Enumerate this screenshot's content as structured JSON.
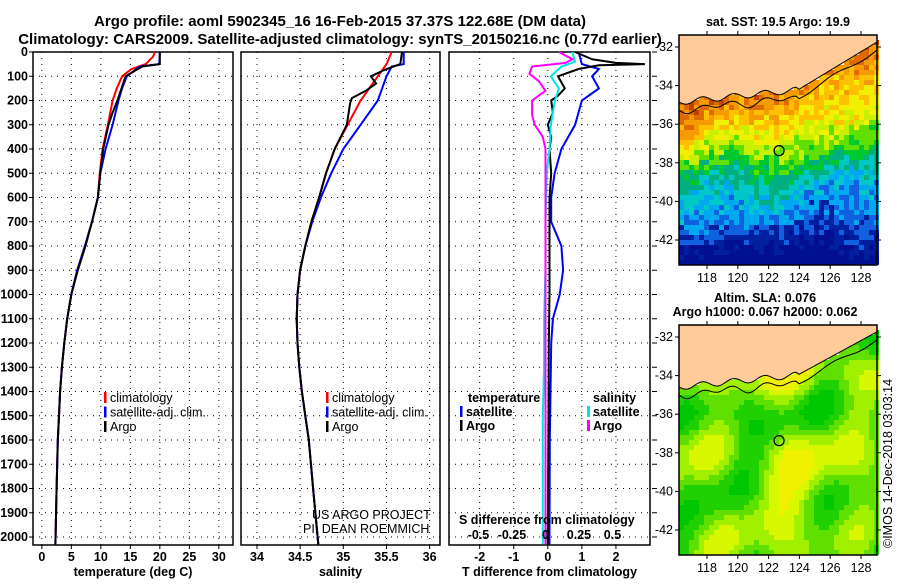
{
  "title_line1": "Argo profile: aoml 5902345_16 16-Feb-2015 37.37S 122.68E (DM data)",
  "title_line2": "Climatology: CARS2009. Satellite-adjusted climatology: synTS_20150216.nc (0.77d earlier)",
  "credit": {
    "line1": "US ARGO PROJECT",
    "line2": "PI: DEAN ROEMMICH"
  },
  "timestamp": "©IMOS 14-Dec-2018 03:03:14",
  "colors": {
    "climatology": "#ff0000",
    "satellite": "#0000ff",
    "argo": "#000000",
    "sal_satellite": "#00e5e5",
    "sal_argo": "#ff00ff",
    "land": "#ffcc99"
  },
  "chart_data": [
    {
      "type": "line",
      "name": "temperature",
      "xlabel": "temperature (deg C)",
      "ylabel": "",
      "xlim": [
        -1.5,
        32.4
      ],
      "ylim": [
        2030,
        0
      ],
      "xticks": [
        "0",
        "5",
        "10",
        "15",
        "20",
        "25",
        "30"
      ],
      "xtick_values": [
        0,
        5,
        10,
        15,
        20,
        25,
        30
      ],
      "yticks": [
        "0",
        "100",
        "200",
        "300",
        "400",
        "500",
        "600",
        "700",
        "800",
        "900",
        "1000",
        "1100",
        "1200",
        "1300",
        "1400",
        "1500",
        "1600",
        "1700",
        "1800",
        "1900",
        "2000"
      ],
      "legend": [
        "climatology",
        "satellite-adj. clim.",
        "Argo"
      ],
      "series": [
        {
          "name": "climatology",
          "color": "#ff0000",
          "depth": [
            0,
            20,
            50,
            70,
            100,
            150,
            200,
            300,
            400,
            500,
            600,
            700,
            800,
            900,
            1000,
            1100,
            1200,
            1300,
            1400,
            1500,
            1600,
            1800,
            2030
          ],
          "values": [
            19.2,
            18.8,
            17.6,
            15.2,
            13.6,
            12.7,
            12.0,
            11.2,
            10.3,
            9.8,
            9.5,
            8.5,
            7.3,
            6.0,
            5.0,
            4.3,
            3.8,
            3.4,
            3.1,
            2.9,
            2.7,
            2.5,
            2.3
          ]
        },
        {
          "name": "satellite-adj. clim.",
          "color": "#0000ff",
          "depth": [
            0,
            50,
            60,
            100,
            150,
            200,
            300,
            400,
            500,
            600,
            700,
            800,
            900,
            1000,
            1100,
            1200,
            1300,
            1400,
            1500,
            1600,
            1800,
            2030
          ],
          "values": [
            20.0,
            19.9,
            16.6,
            14.4,
            13.6,
            13.0,
            12.0,
            10.8,
            9.9,
            9.5,
            8.5,
            7.3,
            6.0,
            5.0,
            4.3,
            3.8,
            3.4,
            3.1,
            2.9,
            2.7,
            2.5,
            2.3
          ]
        },
        {
          "name": "Argo",
          "color": "#000000",
          "depth": [
            0,
            50,
            60,
            100,
            150,
            200,
            250,
            300,
            400,
            500,
            600,
            700,
            800,
            900,
            1000,
            1100,
            1200,
            1300,
            1400,
            1500,
            1600,
            1800,
            2030
          ],
          "values": [
            20.0,
            20.0,
            17.0,
            14.2,
            13.5,
            12.8,
            12.0,
            11.3,
            10.4,
            9.9,
            9.5,
            8.5,
            7.4,
            6.1,
            5.0,
            4.3,
            3.8,
            3.4,
            3.1,
            2.9,
            2.7,
            2.5,
            2.3
          ]
        }
      ]
    },
    {
      "type": "line",
      "name": "salinity",
      "xlabel": "salinity",
      "xlim": [
        33.815,
        36.12
      ],
      "ylim": [
        2030,
        0
      ],
      "xticks": [
        "34",
        "34.5",
        "35",
        "35.5",
        "36"
      ],
      "xtick_values": [
        34,
        34.5,
        35,
        35.5,
        36
      ],
      "legend": [
        "climatology",
        "satellite-adj. clim.",
        "Argo"
      ],
      "series": [
        {
          "name": "climatology",
          "color": "#ff0000",
          "depth": [
            0,
            50,
            100,
            200,
            300,
            400,
            500,
            600,
            700,
            800,
            900,
            1000,
            1100,
            1200,
            1300,
            1400,
            1500,
            1600,
            1800,
            2030
          ],
          "values": [
            35.56,
            35.5,
            35.4,
            35.2,
            35.05,
            34.9,
            34.8,
            34.72,
            34.63,
            34.56,
            34.5,
            34.47,
            34.46,
            34.47,
            34.49,
            34.52,
            34.56,
            34.6,
            34.65,
            34.71
          ]
        },
        {
          "name": "satellite-adj. clim.",
          "color": "#0000ff",
          "depth": [
            0,
            50,
            60,
            100,
            200,
            300,
            400,
            500,
            600,
            700,
            800,
            900,
            1000,
            1100,
            1200,
            1300,
            1400,
            1500,
            1600,
            1800,
            2030
          ],
          "values": [
            35.7,
            35.7,
            35.56,
            35.5,
            35.4,
            35.2,
            35.0,
            34.86,
            34.74,
            34.64,
            34.56,
            34.5,
            34.47,
            34.46,
            34.47,
            34.49,
            34.52,
            34.56,
            34.6,
            34.65,
            34.71
          ]
        },
        {
          "name": "Argo",
          "color": "#000000",
          "depth": [
            0,
            50,
            70,
            100,
            130,
            160,
            190,
            210,
            300,
            400,
            500,
            600,
            700,
            800,
            900,
            1000,
            1100,
            1200,
            1300,
            1400,
            1500,
            1600,
            1800,
            2030
          ],
          "values": [
            35.68,
            35.66,
            35.5,
            35.32,
            35.38,
            35.26,
            35.1,
            35.08,
            35.04,
            34.9,
            34.8,
            34.72,
            34.63,
            34.56,
            34.5,
            34.47,
            34.46,
            34.47,
            34.49,
            34.52,
            34.56,
            34.6,
            34.65,
            34.71
          ]
        }
      ]
    },
    {
      "type": "line",
      "name": "difference",
      "xlabel": "T difference from climatology",
      "xlim": [
        -2.9,
        3.0
      ],
      "ylim": [
        2030,
        0
      ],
      "xticks": [
        "-2",
        "-1",
        "0",
        "1",
        "2"
      ],
      "xtick_values": [
        -2,
        -1,
        0,
        1,
        2
      ],
      "x2label": "S difference from climatology",
      "x2lim": [
        -0.72,
        0.78
      ],
      "x2ticks": [
        "-0.5",
        "-0.25",
        "0",
        "0.25",
        "0.5"
      ],
      "x2tick_values": [
        -0.5,
        -0.25,
        0,
        0.25,
        0.5
      ],
      "legend_temperature": {
        "title": "temperature",
        "items": [
          "satellite",
          "Argo"
        ]
      },
      "legend_salinity": {
        "title": "salinity",
        "items": [
          "satellite",
          "Argo"
        ]
      },
      "series": [
        {
          "name": "T satellite",
          "axis": "T",
          "color": "#0000ff",
          "depth": [
            0,
            50,
            70,
            100,
            150,
            200,
            300,
            400,
            500,
            600,
            700,
            800,
            900,
            1000,
            1100,
            1200,
            1400,
            1600,
            2030
          ],
          "values": [
            0.9,
            1.0,
            1.5,
            1.3,
            1.5,
            1.0,
            0.8,
            0.4,
            0.2,
            0.1,
            0.1,
            0.4,
            0.45,
            0.35,
            0.15,
            0.1,
            0.08,
            0.06,
            0.05
          ]
        },
        {
          "name": "T Argo",
          "axis": "T",
          "color": "#000000",
          "depth": [
            0,
            30,
            45,
            50,
            55,
            70,
            100,
            150,
            180,
            200,
            250,
            300,
            350,
            400,
            500,
            600,
            800,
            1000,
            1200,
            1500,
            2030
          ],
          "values": [
            0.8,
            1.3,
            2.0,
            2.85,
            1.5,
            0.9,
            0.3,
            0.5,
            0.3,
            0.1,
            0.15,
            0.0,
            0.1,
            0.05,
            0.1,
            0.05,
            0.05,
            0.05,
            0.03,
            0.02,
            0.0
          ]
        },
        {
          "name": "S satellite",
          "axis": "S",
          "color": "#00e5e5",
          "depth": [
            0,
            40,
            60,
            100,
            150,
            200,
            300,
            400,
            500,
            700,
            900,
            1100,
            1300,
            1500,
            2030
          ],
          "values": [
            0.2,
            0.22,
            0.12,
            0.04,
            0.1,
            0.07,
            0.04,
            0.03,
            0.01,
            0.0,
            0.0,
            -0.01,
            -0.01,
            -0.02,
            -0.02
          ]
        },
        {
          "name": "S Argo",
          "axis": "S",
          "color": "#ff00ff",
          "depth": [
            0,
            30,
            45,
            60,
            90,
            120,
            160,
            200,
            260,
            300,
            350,
            400,
            500,
            700,
            900,
            1100,
            1300,
            1500,
            2030
          ],
          "values": [
            0.1,
            0.2,
            0.15,
            -0.1,
            -0.12,
            -0.05,
            0.0,
            -0.1,
            -0.1,
            -0.08,
            -0.02,
            0.0,
            0.0,
            0.0,
            0.0,
            0.0,
            0.0,
            0.0,
            0.0
          ]
        }
      ]
    }
  ],
  "maps": [
    {
      "title": "sat. SST: 19.5 Argo: 19.9",
      "xticks": [
        "118",
        "120",
        "122",
        "124",
        "126",
        "128"
      ],
      "yticks": [
        "-32",
        "-34",
        "-36",
        "-38",
        "-40",
        "-42"
      ],
      "argo_lon": 122.68,
      "argo_lat": -37.37
    },
    {
      "title_line1": "Altim. SLA: 0.076",
      "title_line2": "Argo h1000: 0.067 h2000: 0.062",
      "xticks": [
        "118",
        "120",
        "122",
        "124",
        "126",
        "128"
      ],
      "yticks": [
        "-32",
        "-34",
        "-36",
        "-38",
        "-40",
        "-42"
      ],
      "argo_lon": 122.68,
      "argo_lat": -37.37
    }
  ]
}
